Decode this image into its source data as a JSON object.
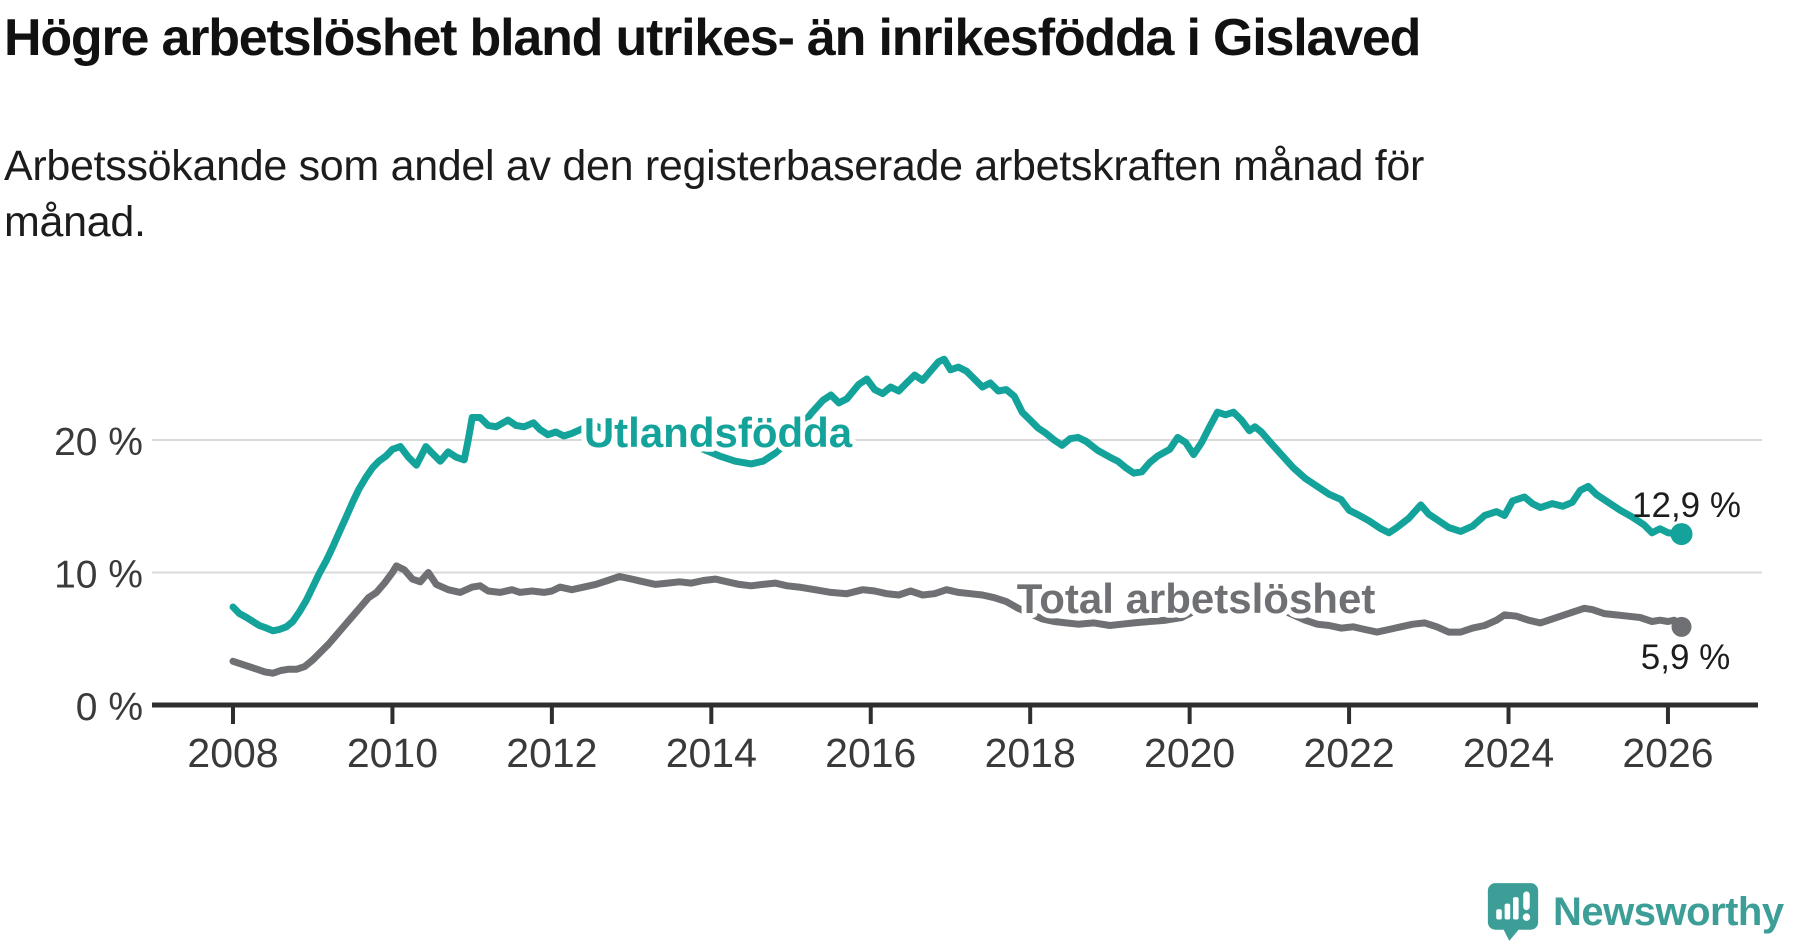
{
  "header": {
    "title": "Högre arbetslöshet bland utrikes- än inrikesfödda i Gislaved",
    "subtitle_lines": [
      "Arbetssökande som andel av den registerbaserade arbetskraften månad för",
      "månad."
    ]
  },
  "footer": {
    "brand": "Newsworthy"
  },
  "colors": {
    "series_foreign_born": "#14a39b",
    "series_total": "#6f7073",
    "gridline": "#d9d9d9",
    "axis": "#2e2e2e",
    "tick_text": "#3a3a3a",
    "end_label_text": "#1d1d1d",
    "logo_teal": "#3d9e98"
  },
  "chart_data": {
    "type": "line",
    "title": "Högre arbetslöshet bland utrikes- än inrikesfödda i Gislaved",
    "subtitle": "Arbetssökande som andel av den registerbaserade arbetskraften månad för månad.",
    "unit": "%",
    "grid": "horizontal",
    "legend_position": "inline-labels",
    "xlim": [
      2007.0,
      2027.1
    ],
    "ylim": [
      0,
      30
    ],
    "x_ticks": [
      2008,
      2010,
      2012,
      2014,
      2016,
      2018,
      2020,
      2022,
      2024,
      2026
    ],
    "y_ticks": [
      {
        "value": 0,
        "label": "0 %"
      },
      {
        "value": 10,
        "label": "10 %"
      },
      {
        "value": 20,
        "label": "20 %"
      }
    ],
    "series": [
      {
        "name": "Utlandsfödda",
        "color": "#14a39b",
        "end_label": "12,9 %",
        "end_value": 12.9,
        "points": [
          [
            2008.0,
            7.4
          ],
          [
            2008.08,
            6.9
          ],
          [
            2008.17,
            6.6
          ],
          [
            2008.25,
            6.3
          ],
          [
            2008.33,
            6.0
          ],
          [
            2008.42,
            5.8
          ],
          [
            2008.5,
            5.6
          ],
          [
            2008.58,
            5.7
          ],
          [
            2008.67,
            5.9
          ],
          [
            2008.75,
            6.3
          ],
          [
            2008.83,
            7.0
          ],
          [
            2008.92,
            7.9
          ],
          [
            2009.0,
            8.9
          ],
          [
            2009.08,
            9.9
          ],
          [
            2009.17,
            10.9
          ],
          [
            2009.25,
            11.9
          ],
          [
            2009.33,
            13.0
          ],
          [
            2009.42,
            14.2
          ],
          [
            2009.5,
            15.3
          ],
          [
            2009.58,
            16.3
          ],
          [
            2009.67,
            17.2
          ],
          [
            2009.75,
            17.9
          ],
          [
            2009.83,
            18.4
          ],
          [
            2009.92,
            18.8
          ],
          [
            2010.0,
            19.3
          ],
          [
            2010.1,
            19.5
          ],
          [
            2010.2,
            18.7
          ],
          [
            2010.3,
            18.1
          ],
          [
            2010.42,
            19.5
          ],
          [
            2010.5,
            19.0
          ],
          [
            2010.6,
            18.4
          ],
          [
            2010.7,
            19.1
          ],
          [
            2010.8,
            18.7
          ],
          [
            2010.9,
            18.5
          ],
          [
            2010.95,
            20.0
          ],
          [
            2011.0,
            21.7
          ],
          [
            2011.1,
            21.7
          ],
          [
            2011.2,
            21.1
          ],
          [
            2011.3,
            21.0
          ],
          [
            2011.45,
            21.5
          ],
          [
            2011.55,
            21.1
          ],
          [
            2011.65,
            21.0
          ],
          [
            2011.77,
            21.3
          ],
          [
            2011.85,
            20.8
          ],
          [
            2011.95,
            20.4
          ],
          [
            2012.05,
            20.6
          ],
          [
            2012.15,
            20.3
          ],
          [
            2012.25,
            20.5
          ],
          [
            2012.4,
            20.9
          ],
          [
            2012.5,
            21.2
          ],
          [
            2012.65,
            20.8
          ],
          [
            2012.8,
            20.5
          ],
          [
            2012.95,
            20.7
          ],
          [
            2013.1,
            20.5
          ],
          [
            2013.3,
            20.2
          ],
          [
            2013.5,
            20.0
          ],
          [
            2013.7,
            19.7
          ],
          [
            2013.9,
            19.3
          ],
          [
            2014.1,
            18.8
          ],
          [
            2014.3,
            18.4
          ],
          [
            2014.5,
            18.2
          ],
          [
            2014.65,
            18.4
          ],
          [
            2014.8,
            19.0
          ],
          [
            2014.95,
            19.8
          ],
          [
            2015.1,
            20.8
          ],
          [
            2015.25,
            22.0
          ],
          [
            2015.4,
            23.0
          ],
          [
            2015.5,
            23.4
          ],
          [
            2015.6,
            22.8
          ],
          [
            2015.7,
            23.1
          ],
          [
            2015.85,
            24.2
          ],
          [
            2015.95,
            24.6
          ],
          [
            2016.05,
            23.8
          ],
          [
            2016.15,
            23.5
          ],
          [
            2016.25,
            24.0
          ],
          [
            2016.35,
            23.7
          ],
          [
            2016.45,
            24.3
          ],
          [
            2016.55,
            24.9
          ],
          [
            2016.65,
            24.5
          ],
          [
            2016.75,
            25.2
          ],
          [
            2016.85,
            25.9
          ],
          [
            2016.92,
            26.1
          ],
          [
            2017.0,
            25.3
          ],
          [
            2017.1,
            25.5
          ],
          [
            2017.2,
            25.2
          ],
          [
            2017.3,
            24.6
          ],
          [
            2017.4,
            24.0
          ],
          [
            2017.5,
            24.3
          ],
          [
            2017.6,
            23.7
          ],
          [
            2017.7,
            23.8
          ],
          [
            2017.8,
            23.3
          ],
          [
            2017.9,
            22.1
          ],
          [
            2018.0,
            21.5
          ],
          [
            2018.1,
            20.9
          ],
          [
            2018.2,
            20.5
          ],
          [
            2018.3,
            20.0
          ],
          [
            2018.4,
            19.6
          ],
          [
            2018.5,
            20.1
          ],
          [
            2018.6,
            20.2
          ],
          [
            2018.7,
            19.9
          ],
          [
            2018.85,
            19.2
          ],
          [
            2019.0,
            18.7
          ],
          [
            2019.1,
            18.4
          ],
          [
            2019.2,
            17.9
          ],
          [
            2019.3,
            17.5
          ],
          [
            2019.4,
            17.6
          ],
          [
            2019.5,
            18.3
          ],
          [
            2019.6,
            18.8
          ],
          [
            2019.75,
            19.3
          ],
          [
            2019.85,
            20.2
          ],
          [
            2019.95,
            19.8
          ],
          [
            2020.05,
            18.9
          ],
          [
            2020.15,
            19.8
          ],
          [
            2020.25,
            21.0
          ],
          [
            2020.35,
            22.1
          ],
          [
            2020.45,
            21.9
          ],
          [
            2020.55,
            22.1
          ],
          [
            2020.65,
            21.5
          ],
          [
            2020.75,
            20.7
          ],
          [
            2020.82,
            21.0
          ],
          [
            2020.9,
            20.6
          ],
          [
            2021.0,
            19.9
          ],
          [
            2021.15,
            18.9
          ],
          [
            2021.3,
            17.9
          ],
          [
            2021.45,
            17.1
          ],
          [
            2021.6,
            16.5
          ],
          [
            2021.75,
            15.9
          ],
          [
            2021.9,
            15.5
          ],
          [
            2022.0,
            14.7
          ],
          [
            2022.1,
            14.4
          ],
          [
            2022.25,
            13.9
          ],
          [
            2022.4,
            13.3
          ],
          [
            2022.5,
            13.0
          ],
          [
            2022.6,
            13.4
          ],
          [
            2022.75,
            14.1
          ],
          [
            2022.9,
            15.1
          ],
          [
            2023.0,
            14.4
          ],
          [
            2023.1,
            14.0
          ],
          [
            2023.25,
            13.4
          ],
          [
            2023.4,
            13.1
          ],
          [
            2023.55,
            13.5
          ],
          [
            2023.7,
            14.3
          ],
          [
            2023.85,
            14.6
          ],
          [
            2023.95,
            14.3
          ],
          [
            2024.05,
            15.4
          ],
          [
            2024.2,
            15.7
          ],
          [
            2024.3,
            15.2
          ],
          [
            2024.4,
            14.9
          ],
          [
            2024.55,
            15.2
          ],
          [
            2024.68,
            15.0
          ],
          [
            2024.8,
            15.3
          ],
          [
            2024.9,
            16.2
          ],
          [
            2025.0,
            16.5
          ],
          [
            2025.1,
            15.9
          ],
          [
            2025.25,
            15.3
          ],
          [
            2025.4,
            14.7
          ],
          [
            2025.55,
            14.2
          ],
          [
            2025.7,
            13.6
          ],
          [
            2025.8,
            13.0
          ],
          [
            2025.9,
            13.3
          ],
          [
            2026.0,
            13.0
          ],
          [
            2026.17,
            12.9
          ]
        ]
      },
      {
        "name": "Total arbetslöshet",
        "color": "#6f7073",
        "end_label": "5,9 %",
        "end_value": 5.9,
        "points": [
          [
            2008.0,
            3.3
          ],
          [
            2008.1,
            3.1
          ],
          [
            2008.2,
            2.9
          ],
          [
            2008.3,
            2.7
          ],
          [
            2008.4,
            2.5
          ],
          [
            2008.5,
            2.4
          ],
          [
            2008.6,
            2.6
          ],
          [
            2008.7,
            2.7
          ],
          [
            2008.8,
            2.7
          ],
          [
            2008.9,
            2.9
          ],
          [
            2009.0,
            3.4
          ],
          [
            2009.1,
            4.0
          ],
          [
            2009.2,
            4.6
          ],
          [
            2009.3,
            5.3
          ],
          [
            2009.4,
            6.0
          ],
          [
            2009.5,
            6.7
          ],
          [
            2009.6,
            7.4
          ],
          [
            2009.7,
            8.1
          ],
          [
            2009.8,
            8.5
          ],
          [
            2009.9,
            9.2
          ],
          [
            2010.0,
            10.0
          ],
          [
            2010.05,
            10.5
          ],
          [
            2010.15,
            10.2
          ],
          [
            2010.25,
            9.5
          ],
          [
            2010.35,
            9.3
          ],
          [
            2010.45,
            10.0
          ],
          [
            2010.55,
            9.1
          ],
          [
            2010.7,
            8.7
          ],
          [
            2010.85,
            8.5
          ],
          [
            2011.0,
            8.9
          ],
          [
            2011.1,
            9.0
          ],
          [
            2011.2,
            8.6
          ],
          [
            2011.35,
            8.5
          ],
          [
            2011.5,
            8.7
          ],
          [
            2011.6,
            8.5
          ],
          [
            2011.75,
            8.6
          ],
          [
            2011.9,
            8.5
          ],
          [
            2012.0,
            8.6
          ],
          [
            2012.1,
            8.9
          ],
          [
            2012.25,
            8.7
          ],
          [
            2012.4,
            8.9
          ],
          [
            2012.55,
            9.1
          ],
          [
            2012.7,
            9.4
          ],
          [
            2012.85,
            9.7
          ],
          [
            2013.0,
            9.5
          ],
          [
            2013.15,
            9.3
          ],
          [
            2013.3,
            9.1
          ],
          [
            2013.45,
            9.2
          ],
          [
            2013.6,
            9.3
          ],
          [
            2013.75,
            9.2
          ],
          [
            2013.9,
            9.4
          ],
          [
            2014.05,
            9.5
          ],
          [
            2014.2,
            9.3
          ],
          [
            2014.35,
            9.1
          ],
          [
            2014.5,
            9.0
          ],
          [
            2014.65,
            9.1
          ],
          [
            2014.8,
            9.2
          ],
          [
            2014.95,
            9.0
          ],
          [
            2015.1,
            8.9
          ],
          [
            2015.3,
            8.7
          ],
          [
            2015.5,
            8.5
          ],
          [
            2015.7,
            8.4
          ],
          [
            2015.9,
            8.7
          ],
          [
            2016.05,
            8.6
          ],
          [
            2016.2,
            8.4
          ],
          [
            2016.35,
            8.3
          ],
          [
            2016.5,
            8.6
          ],
          [
            2016.65,
            8.3
          ],
          [
            2016.8,
            8.4
          ],
          [
            2016.95,
            8.7
          ],
          [
            2017.1,
            8.5
          ],
          [
            2017.25,
            8.4
          ],
          [
            2017.4,
            8.3
          ],
          [
            2017.55,
            8.1
          ],
          [
            2017.7,
            7.8
          ],
          [
            2017.85,
            7.3
          ],
          [
            2018.0,
            6.9
          ],
          [
            2018.15,
            6.5
          ],
          [
            2018.3,
            6.3
          ],
          [
            2018.45,
            6.2
          ],
          [
            2018.6,
            6.1
          ],
          [
            2018.8,
            6.2
          ],
          [
            2019.0,
            6.0
          ],
          [
            2019.15,
            6.1
          ],
          [
            2019.3,
            6.2
          ],
          [
            2019.5,
            6.3
          ],
          [
            2019.7,
            6.4
          ],
          [
            2019.9,
            6.6
          ],
          [
            2020.1,
            7.2
          ],
          [
            2020.3,
            7.9
          ],
          [
            2020.5,
            8.3
          ],
          [
            2020.65,
            8.2
          ],
          [
            2020.8,
            8.0
          ],
          [
            2021.0,
            7.6
          ],
          [
            2021.15,
            7.2
          ],
          [
            2021.3,
            6.8
          ],
          [
            2021.45,
            6.4
          ],
          [
            2021.6,
            6.1
          ],
          [
            2021.75,
            6.0
          ],
          [
            2021.9,
            5.8
          ],
          [
            2022.05,
            5.9
          ],
          [
            2022.2,
            5.7
          ],
          [
            2022.35,
            5.5
          ],
          [
            2022.5,
            5.7
          ],
          [
            2022.65,
            5.9
          ],
          [
            2022.8,
            6.1
          ],
          [
            2022.95,
            6.2
          ],
          [
            2023.1,
            5.9
          ],
          [
            2023.25,
            5.5
          ],
          [
            2023.4,
            5.5
          ],
          [
            2023.55,
            5.8
          ],
          [
            2023.7,
            6.0
          ],
          [
            2023.85,
            6.4
          ],
          [
            2023.95,
            6.8
          ],
          [
            2024.1,
            6.7
          ],
          [
            2024.25,
            6.4
          ],
          [
            2024.4,
            6.2
          ],
          [
            2024.55,
            6.5
          ],
          [
            2024.7,
            6.8
          ],
          [
            2024.85,
            7.1
          ],
          [
            2024.95,
            7.3
          ],
          [
            2025.05,
            7.2
          ],
          [
            2025.2,
            6.9
          ],
          [
            2025.35,
            6.8
          ],
          [
            2025.5,
            6.7
          ],
          [
            2025.65,
            6.6
          ],
          [
            2025.8,
            6.3
          ],
          [
            2025.9,
            6.4
          ],
          [
            2026.0,
            6.3
          ],
          [
            2026.08,
            6.4
          ],
          [
            2026.17,
            5.9
          ]
        ]
      }
    ]
  }
}
